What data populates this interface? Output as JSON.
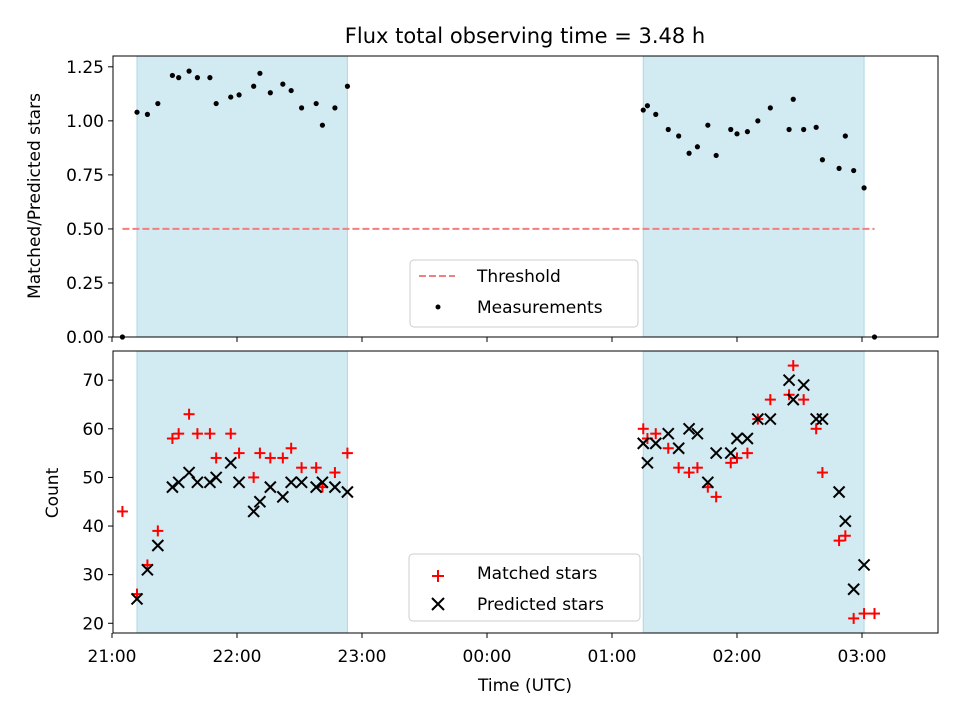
{
  "chart_data": [
    {
      "type": "scatter",
      "title": "Flux total observing time = 3.48 h",
      "xlabel": "",
      "ylabel": "Matched/Predicted stars",
      "ylim": [
        0,
        1.3
      ],
      "y_ticks": [
        0.0,
        0.25,
        0.5,
        0.75,
        1.0,
        1.25
      ],
      "y_tick_labels": [
        "0.00",
        "0.25",
        "0.50",
        "0.75",
        "1.00",
        "1.25"
      ],
      "x_tick_labels_shown": false,
      "shaded_intervals": [
        [
          "21:12",
          "22:53"
        ],
        [
          "01:15",
          "03:01"
        ]
      ],
      "shade_color": "#add8e6",
      "threshold": {
        "value": 0.5,
        "x_range": [
          "21:05",
          "03:06"
        ],
        "color": "#f08080",
        "style": "dashed"
      },
      "series": [
        {
          "name": "Measurements",
          "marker": "dot",
          "color": "#000000",
          "points": [
            [
              "21:05",
              0.0
            ],
            [
              "21:12",
              1.04
            ],
            [
              "21:17",
              1.03
            ],
            [
              "21:22",
              1.08
            ],
            [
              "21:29",
              1.21
            ],
            [
              "21:32",
              1.2
            ],
            [
              "21:37",
              1.23
            ],
            [
              "21:41",
              1.2
            ],
            [
              "21:47",
              1.2
            ],
            [
              "21:50",
              1.08
            ],
            [
              "21:57",
              1.11
            ],
            [
              "22:01",
              1.12
            ],
            [
              "22:08",
              1.16
            ],
            [
              "22:11",
              1.22
            ],
            [
              "22:16",
              1.13
            ],
            [
              "22:22",
              1.17
            ],
            [
              "22:26",
              1.14
            ],
            [
              "22:31",
              1.06
            ],
            [
              "22:38",
              1.08
            ],
            [
              "22:41",
              0.98
            ],
            [
              "22:47",
              1.06
            ],
            [
              "22:53",
              1.16
            ],
            [
              "01:15",
              1.05
            ],
            [
              "01:17",
              1.07
            ],
            [
              "01:21",
              1.03
            ],
            [
              "01:27",
              0.96
            ],
            [
              "01:32",
              0.93
            ],
            [
              "01:37",
              0.85
            ],
            [
              "01:41",
              0.88
            ],
            [
              "01:46",
              0.98
            ],
            [
              "01:50",
              0.84
            ],
            [
              "01:57",
              0.96
            ],
            [
              "02:00",
              0.94
            ],
            [
              "02:05",
              0.95
            ],
            [
              "02:10",
              1.0
            ],
            [
              "02:16",
              1.06
            ],
            [
              "02:25",
              0.96
            ],
            [
              "02:27",
              1.1
            ],
            [
              "02:32",
              0.96
            ],
            [
              "02:38",
              0.97
            ],
            [
              "02:41",
              0.82
            ],
            [
              "02:49",
              0.78
            ],
            [
              "02:52",
              0.93
            ],
            [
              "02:56",
              0.77
            ],
            [
              "03:01",
              0.69
            ],
            [
              "03:06",
              0.0
            ]
          ]
        }
      ],
      "legend": {
        "placement": "lower center",
        "entries": [
          "Threshold",
          "Measurements"
        ]
      }
    },
    {
      "type": "scatter",
      "title": "",
      "xlabel": "Time (UTC)",
      "ylabel": "Count",
      "ylim": [
        18,
        76
      ],
      "y_ticks": [
        20,
        30,
        40,
        50,
        60,
        70
      ],
      "x_ticks": [
        "21:00",
        "22:00",
        "23:00",
        "00:00",
        "01:00",
        "02:00",
        "03:00"
      ],
      "shaded_intervals": [
        [
          "21:12",
          "22:53"
        ],
        [
          "01:15",
          "03:01"
        ]
      ],
      "shade_color": "#add8e6",
      "series": [
        {
          "name": "Matched stars",
          "marker": "plus",
          "color": "#ff0000",
          "points": [
            [
              "21:05",
              43
            ],
            [
              "21:12",
              26
            ],
            [
              "21:17",
              32
            ],
            [
              "21:22",
              39
            ],
            [
              "21:29",
              58
            ],
            [
              "21:32",
              59
            ],
            [
              "21:37",
              63
            ],
            [
              "21:41",
              59
            ],
            [
              "21:47",
              59
            ],
            [
              "21:50",
              54
            ],
            [
              "21:57",
              59
            ],
            [
              "22:01",
              55
            ],
            [
              "22:08",
              50
            ],
            [
              "22:11",
              55
            ],
            [
              "22:16",
              54
            ],
            [
              "22:22",
              54
            ],
            [
              "22:26",
              56
            ],
            [
              "22:31",
              52
            ],
            [
              "22:38",
              52
            ],
            [
              "22:41",
              48
            ],
            [
              "22:47",
              51
            ],
            [
              "22:53",
              55
            ],
            [
              "01:15",
              60
            ],
            [
              "01:17",
              58
            ],
            [
              "01:21",
              59
            ],
            [
              "01:27",
              56
            ],
            [
              "01:32",
              52
            ],
            [
              "01:37",
              51
            ],
            [
              "01:41",
              52
            ],
            [
              "01:46",
              48
            ],
            [
              "01:50",
              46
            ],
            [
              "01:57",
              53
            ],
            [
              "02:00",
              54
            ],
            [
              "02:05",
              55
            ],
            [
              "02:10",
              62
            ],
            [
              "02:16",
              66
            ],
            [
              "02:25",
              67
            ],
            [
              "02:27",
              73
            ],
            [
              "02:32",
              66
            ],
            [
              "02:38",
              60
            ],
            [
              "02:41",
              51
            ],
            [
              "02:49",
              37
            ],
            [
              "02:52",
              38
            ],
            [
              "02:56",
              21
            ],
            [
              "03:01",
              22
            ],
            [
              "03:06",
              22
            ]
          ]
        },
        {
          "name": "Predicted stars",
          "marker": "x",
          "color": "#000000",
          "points": [
            [
              "21:12",
              25
            ],
            [
              "21:17",
              31
            ],
            [
              "21:22",
              36
            ],
            [
              "21:29",
              48
            ],
            [
              "21:32",
              49
            ],
            [
              "21:37",
              51
            ],
            [
              "21:41",
              49
            ],
            [
              "21:47",
              49
            ],
            [
              "21:50",
              50
            ],
            [
              "21:57",
              53
            ],
            [
              "22:01",
              49
            ],
            [
              "22:08",
              43
            ],
            [
              "22:11",
              45
            ],
            [
              "22:16",
              48
            ],
            [
              "22:22",
              46
            ],
            [
              "22:26",
              49
            ],
            [
              "22:31",
              49
            ],
            [
              "22:38",
              48
            ],
            [
              "22:41",
              49
            ],
            [
              "22:47",
              48
            ],
            [
              "22:53",
              47
            ],
            [
              "01:15",
              57
            ],
            [
              "01:17",
              53
            ],
            [
              "01:21",
              57
            ],
            [
              "01:27",
              59
            ],
            [
              "01:32",
              56
            ],
            [
              "01:37",
              60
            ],
            [
              "01:41",
              59
            ],
            [
              "01:46",
              49
            ],
            [
              "01:50",
              55
            ],
            [
              "01:57",
              55
            ],
            [
              "02:00",
              58
            ],
            [
              "02:05",
              58
            ],
            [
              "02:10",
              62
            ],
            [
              "02:16",
              62
            ],
            [
              "02:25",
              70
            ],
            [
              "02:27",
              66
            ],
            [
              "02:32",
              69
            ],
            [
              "02:38",
              62
            ],
            [
              "02:41",
              62
            ],
            [
              "02:49",
              47
            ],
            [
              "02:52",
              41
            ],
            [
              "02:56",
              27
            ],
            [
              "03:01",
              32
            ]
          ]
        }
      ],
      "legend": {
        "placement": "lower center",
        "entries": [
          "Matched stars",
          "Predicted stars"
        ]
      }
    }
  ],
  "legend_labels": {
    "threshold": "Threshold",
    "measurements": "Measurements",
    "matched": "Matched stars",
    "predicted": "Predicted stars"
  }
}
